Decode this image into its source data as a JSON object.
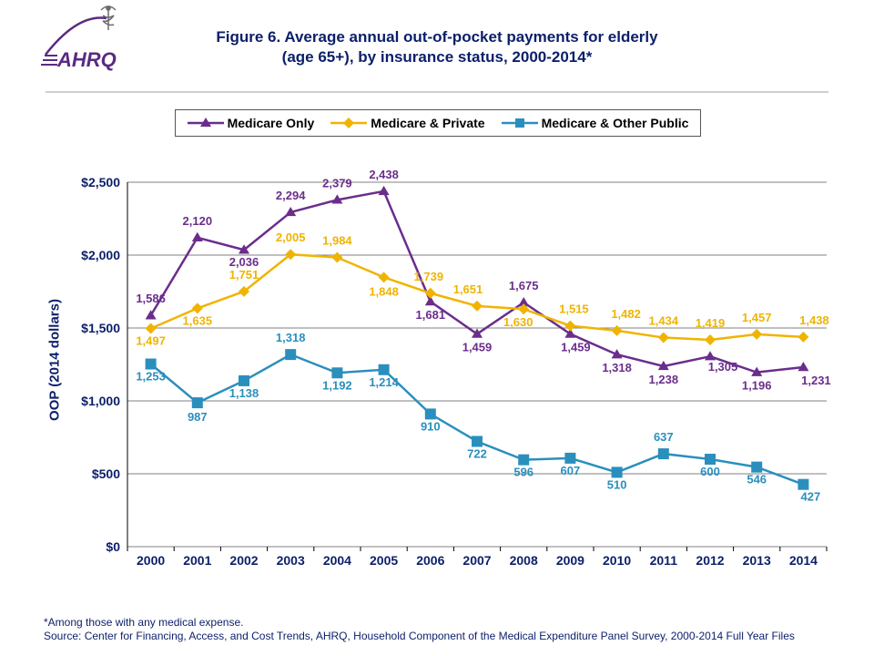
{
  "title_line1": "Figure 6. Average annual out-of-pocket payments for elderly",
  "title_line2": "(age 65+), by insurance status, 2000-2014*",
  "title_color": "#0b1f6a",
  "title_fontsize": 17,
  "ylabel": "OOP (2014 dollars)",
  "footnote": "*Among those with any medical expense.",
  "source": "Source: Center for Financing, Access, and Cost Trends, AHRQ, Household Component of the Medical Expenditure Panel Survey, 2000-2014 Full Year Files",
  "chart": {
    "type": "line",
    "categories": [
      "2000",
      "2001",
      "2002",
      "2003",
      "2004",
      "2005",
      "2006",
      "2007",
      "2008",
      "2009",
      "2010",
      "2011",
      "2012",
      "2013",
      "2014"
    ],
    "ylim": [
      0,
      2500
    ],
    "ytick_step": 500,
    "ytick_prefix": "$",
    "ytick_sep": ",",
    "plot_bg": "#ffffff",
    "grid_color": "#808080",
    "grid_width": 1,
    "axis_color": "#000000",
    "axis_font_size": 14,
    "axis_font_weight": "bold",
    "axis_font_color": "#0b1f6a",
    "datalabel_font_size": 13,
    "datalabel_font_weight": "bold",
    "line_width": 2.5,
    "marker_size": 6,
    "series": [
      {
        "name": "Medicare Only",
        "color": "#6b2d8c",
        "marker": "triangle",
        "values": [
          1586,
          2120,
          2036,
          2294,
          2379,
          2438,
          1681,
          1459,
          1675,
          1459,
          1318,
          1238,
          1305,
          1196,
          1231
        ],
        "label_dy": [
          -14,
          -14,
          18,
          -14,
          -14,
          -14,
          19,
          19,
          -14,
          19,
          19,
          19,
          16,
          19,
          19
        ],
        "label_dx": [
          0,
          0,
          0,
          0,
          0,
          0,
          0,
          0,
          0,
          6,
          0,
          0,
          14,
          0,
          14
        ]
      },
      {
        "name": "Medicare & Private",
        "color": "#f0b400",
        "marker": "diamond",
        "values": [
          1497,
          1635,
          1751,
          2005,
          1984,
          1848,
          1739,
          1651,
          1630,
          1515,
          1482,
          1434,
          1419,
          1457,
          1438
        ],
        "label_dy": [
          18,
          18,
          -14,
          -14,
          -14,
          20,
          -14,
          -14,
          19,
          -14,
          -14,
          -14,
          -14,
          -14,
          -14
        ],
        "label_dx": [
          0,
          0,
          0,
          0,
          0,
          0,
          -2,
          -10,
          -6,
          4,
          10,
          0,
          0,
          0,
          12
        ]
      },
      {
        "name": "Medicare & Other Public",
        "color": "#2a8fbd",
        "marker": "square",
        "values": [
          1253,
          987,
          1138,
          1318,
          1192,
          1214,
          910,
          722,
          596,
          607,
          510,
          637,
          600,
          546,
          427
        ],
        "label_dy": [
          18,
          20,
          18,
          -14,
          18,
          18,
          18,
          18,
          18,
          18,
          18,
          -14,
          18,
          18,
          18
        ],
        "label_dx": [
          0,
          0,
          0,
          0,
          0,
          0,
          0,
          0,
          0,
          0,
          0,
          0,
          0,
          0,
          8
        ]
      }
    ]
  },
  "logo": {
    "text": "AHRQ",
    "text_color": "#5a2b82",
    "swoosh_color": "#5a2b82",
    "caduceus_color": "#6a6a6a"
  }
}
